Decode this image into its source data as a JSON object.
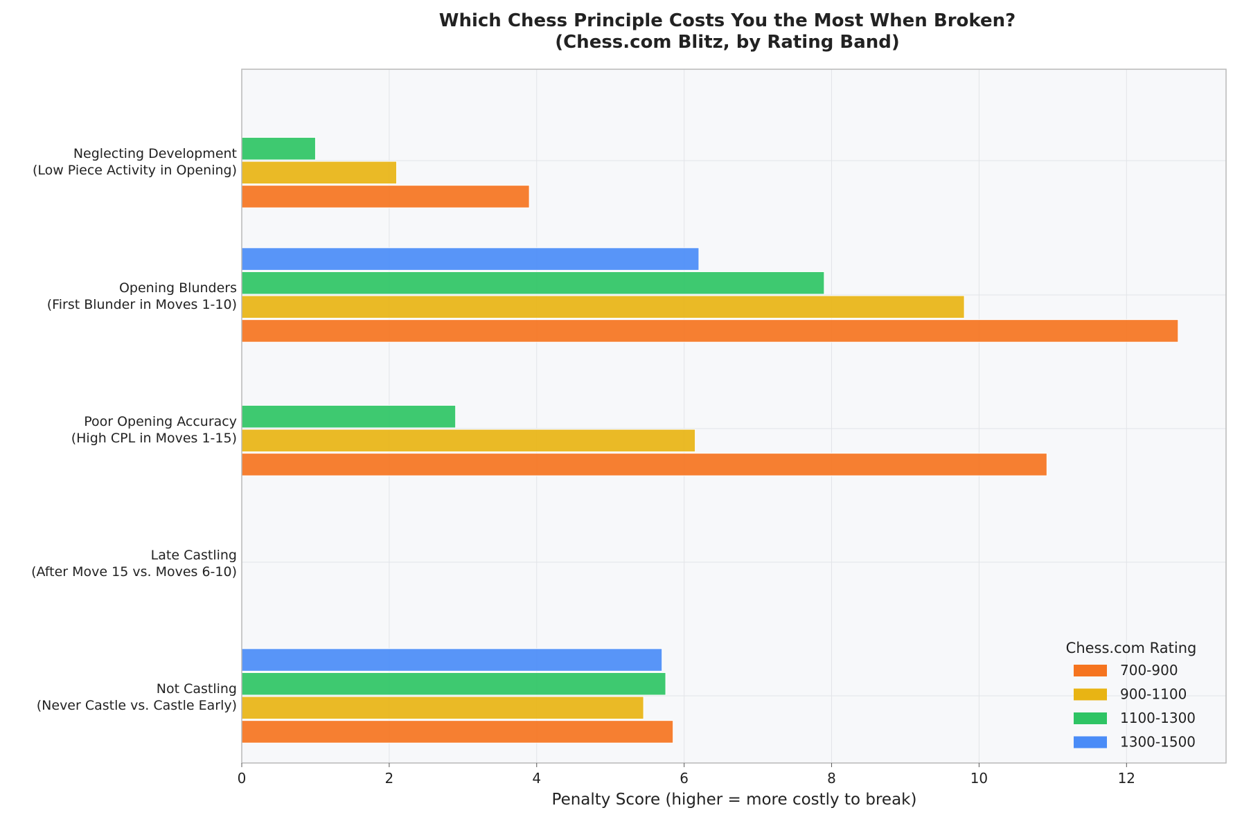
{
  "chart_data": {
    "type": "bar",
    "orientation": "horizontal",
    "title": "Which Chess Principle Costs You the Most When Broken?",
    "subtitle": "(Chess.com Blitz, by Rating Band)",
    "xlabel": "Penalty Score (higher = more costly to break)",
    "ylabel": "",
    "xlim": [
      0,
      13.35
    ],
    "xticks": [
      0,
      2,
      4,
      6,
      8,
      10,
      12
    ],
    "grid": true,
    "legend": {
      "title": "Chess.com Rating",
      "position": "lower-right"
    },
    "categories": [
      {
        "line1": "Neglecting Development",
        "line2": "(Low Piece Activity in Opening)"
      },
      {
        "line1": "Opening Blunders",
        "line2": "(First Blunder in Moves 1-10)"
      },
      {
        "line1": "Poor Opening Accuracy",
        "line2": "(High CPL in Moves 1-15)"
      },
      {
        "line1": "Late Castling",
        "line2": "(After Move 15 vs. Moves 6-10)"
      },
      {
        "line1": "Not Castling",
        "line2": "(Never Castle vs. Castle Early)"
      }
    ],
    "series": [
      {
        "name": "700-900",
        "color": "#f5741f",
        "values": [
          3.9,
          12.7,
          10.92,
          null,
          5.85
        ]
      },
      {
        "name": "900-1100",
        "color": "#e8b414",
        "values": [
          2.1,
          9.8,
          6.15,
          null,
          5.45
        ]
      },
      {
        "name": "1100-1300",
        "color": "#2ec464",
        "values": [
          1.0,
          7.9,
          2.9,
          null,
          5.75
        ]
      },
      {
        "name": "1300-1500",
        "color": "#4a8cf7",
        "values": [
          null,
          6.2,
          null,
          null,
          5.7
        ]
      }
    ],
    "colors": {
      "plot_background": "#f7f8fa",
      "grid": "#e2e4e8",
      "axis": "#b8b8b8"
    }
  }
}
